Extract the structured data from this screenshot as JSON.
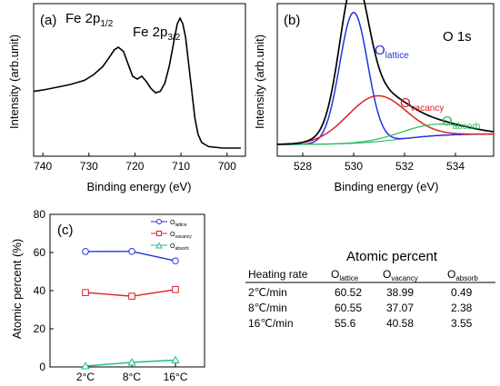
{
  "chart_data": [
    {
      "panel": "(a)",
      "type": "line",
      "xlabel": "Binding energy (eV)",
      "ylabel": "Intensity (arb.unit)",
      "xlim": [
        742,
        696
      ],
      "x_ticks": [
        740,
        730,
        720,
        710,
        700
      ],
      "annotations": [
        {
          "base": "Fe 2p",
          "sub": "1/2",
          "x": 710
        },
        {
          "base": "Fe 2p",
          "sub": "3/2",
          "x": 723.5
        }
      ],
      "series": [
        {
          "color": "#000000",
          "points": [
            [
              742,
              0.43
            ],
            [
              740,
              0.44
            ],
            [
              737,
              0.46
            ],
            [
              734,
              0.48
            ],
            [
              731,
              0.51
            ],
            [
              729,
              0.55
            ],
            [
              727,
              0.61
            ],
            [
              725.5,
              0.68
            ],
            [
              724.5,
              0.73
            ],
            [
              723.6,
              0.75
            ],
            [
              722.5,
              0.72
            ],
            [
              721.5,
              0.63
            ],
            [
              720.5,
              0.54
            ],
            [
              719.5,
              0.52
            ],
            [
              718.5,
              0.54
            ],
            [
              717.5,
              0.5
            ],
            [
              716.5,
              0.45
            ],
            [
              715.5,
              0.42
            ],
            [
              714.5,
              0.43
            ],
            [
              713.5,
              0.49
            ],
            [
              712.5,
              0.62
            ],
            [
              711.5,
              0.8
            ],
            [
              710.8,
              0.92
            ],
            [
              710.2,
              0.96
            ],
            [
              709.6,
              0.92
            ],
            [
              709,
              0.82
            ],
            [
              708.3,
              0.62
            ],
            [
              707.6,
              0.42
            ],
            [
              707,
              0.24
            ],
            [
              706.3,
              0.12
            ],
            [
              705.5,
              0.06
            ],
            [
              704,
              0.03
            ],
            [
              701,
              0.02
            ],
            [
              697,
              0.02
            ]
          ]
        }
      ]
    },
    {
      "panel": "(b)",
      "type": "line",
      "title": "O 1s",
      "xlabel": "Binding energy (eV)",
      "ylabel": "Intensity (arb.unit)",
      "xlim": [
        527,
        535.5
      ],
      "x_ticks": [
        528,
        530,
        532,
        534
      ],
      "components": [
        {
          "name": "O_lattice",
          "base": "O",
          "sub": "lattice",
          "color": "#2233dd",
          "center": 530.0,
          "height": 0.8,
          "width": 0.55
        },
        {
          "name": "O_vacancy",
          "base": "O",
          "sub": "vacancy",
          "color": "#dd2222",
          "center": 530.9,
          "height": 0.28,
          "width": 1.15
        },
        {
          "name": "O_absorb",
          "base": "O",
          "sub": "absorb",
          "color": "#22bb55",
          "center": 533.2,
          "height": 0.07,
          "width": 1.3
        }
      ],
      "envelope_color": "#000000",
      "background": {
        "from": 0.005,
        "to": 0.07
      }
    },
    {
      "panel": "(c)",
      "type": "line",
      "ylabel": "Atomic percent (%)",
      "categories": [
        "2°C",
        "8°C",
        "16°C"
      ],
      "ylim": [
        0,
        80
      ],
      "y_ticks": [
        0,
        20,
        40,
        60,
        80
      ],
      "legend_position": "top-right",
      "series": [
        {
          "name": "O_lattice",
          "base": "O",
          "sub": "lattice",
          "color": "#2233dd",
          "marker": "circle",
          "values": [
            60.52,
            60.55,
            55.6
          ]
        },
        {
          "name": "O_vacancy",
          "base": "O",
          "sub": "vacancy",
          "color": "#dd2222",
          "marker": "square",
          "values": [
            38.99,
            37.07,
            40.58
          ]
        },
        {
          "name": "O_absorb",
          "base": "O",
          "sub": "absorb",
          "color": "#22bb88",
          "marker": "triangle",
          "values": [
            0.49,
            2.38,
            3.55
          ]
        }
      ]
    },
    {
      "type": "table",
      "title": "Atomic percent",
      "columns": [
        {
          "base": "Heating rate",
          "sub": ""
        },
        {
          "base": "O",
          "sub": "lattice"
        },
        {
          "base": "O",
          "sub": "vacancy"
        },
        {
          "base": "O",
          "sub": "absorb"
        }
      ],
      "rows": [
        [
          "2℃/min",
          "60.52",
          "38.99",
          "0.49"
        ],
        [
          "8℃/min",
          "60.55",
          "37.07",
          "2.38"
        ],
        [
          "16℃/min",
          "55.6",
          "40.58",
          "3.55"
        ]
      ]
    }
  ]
}
